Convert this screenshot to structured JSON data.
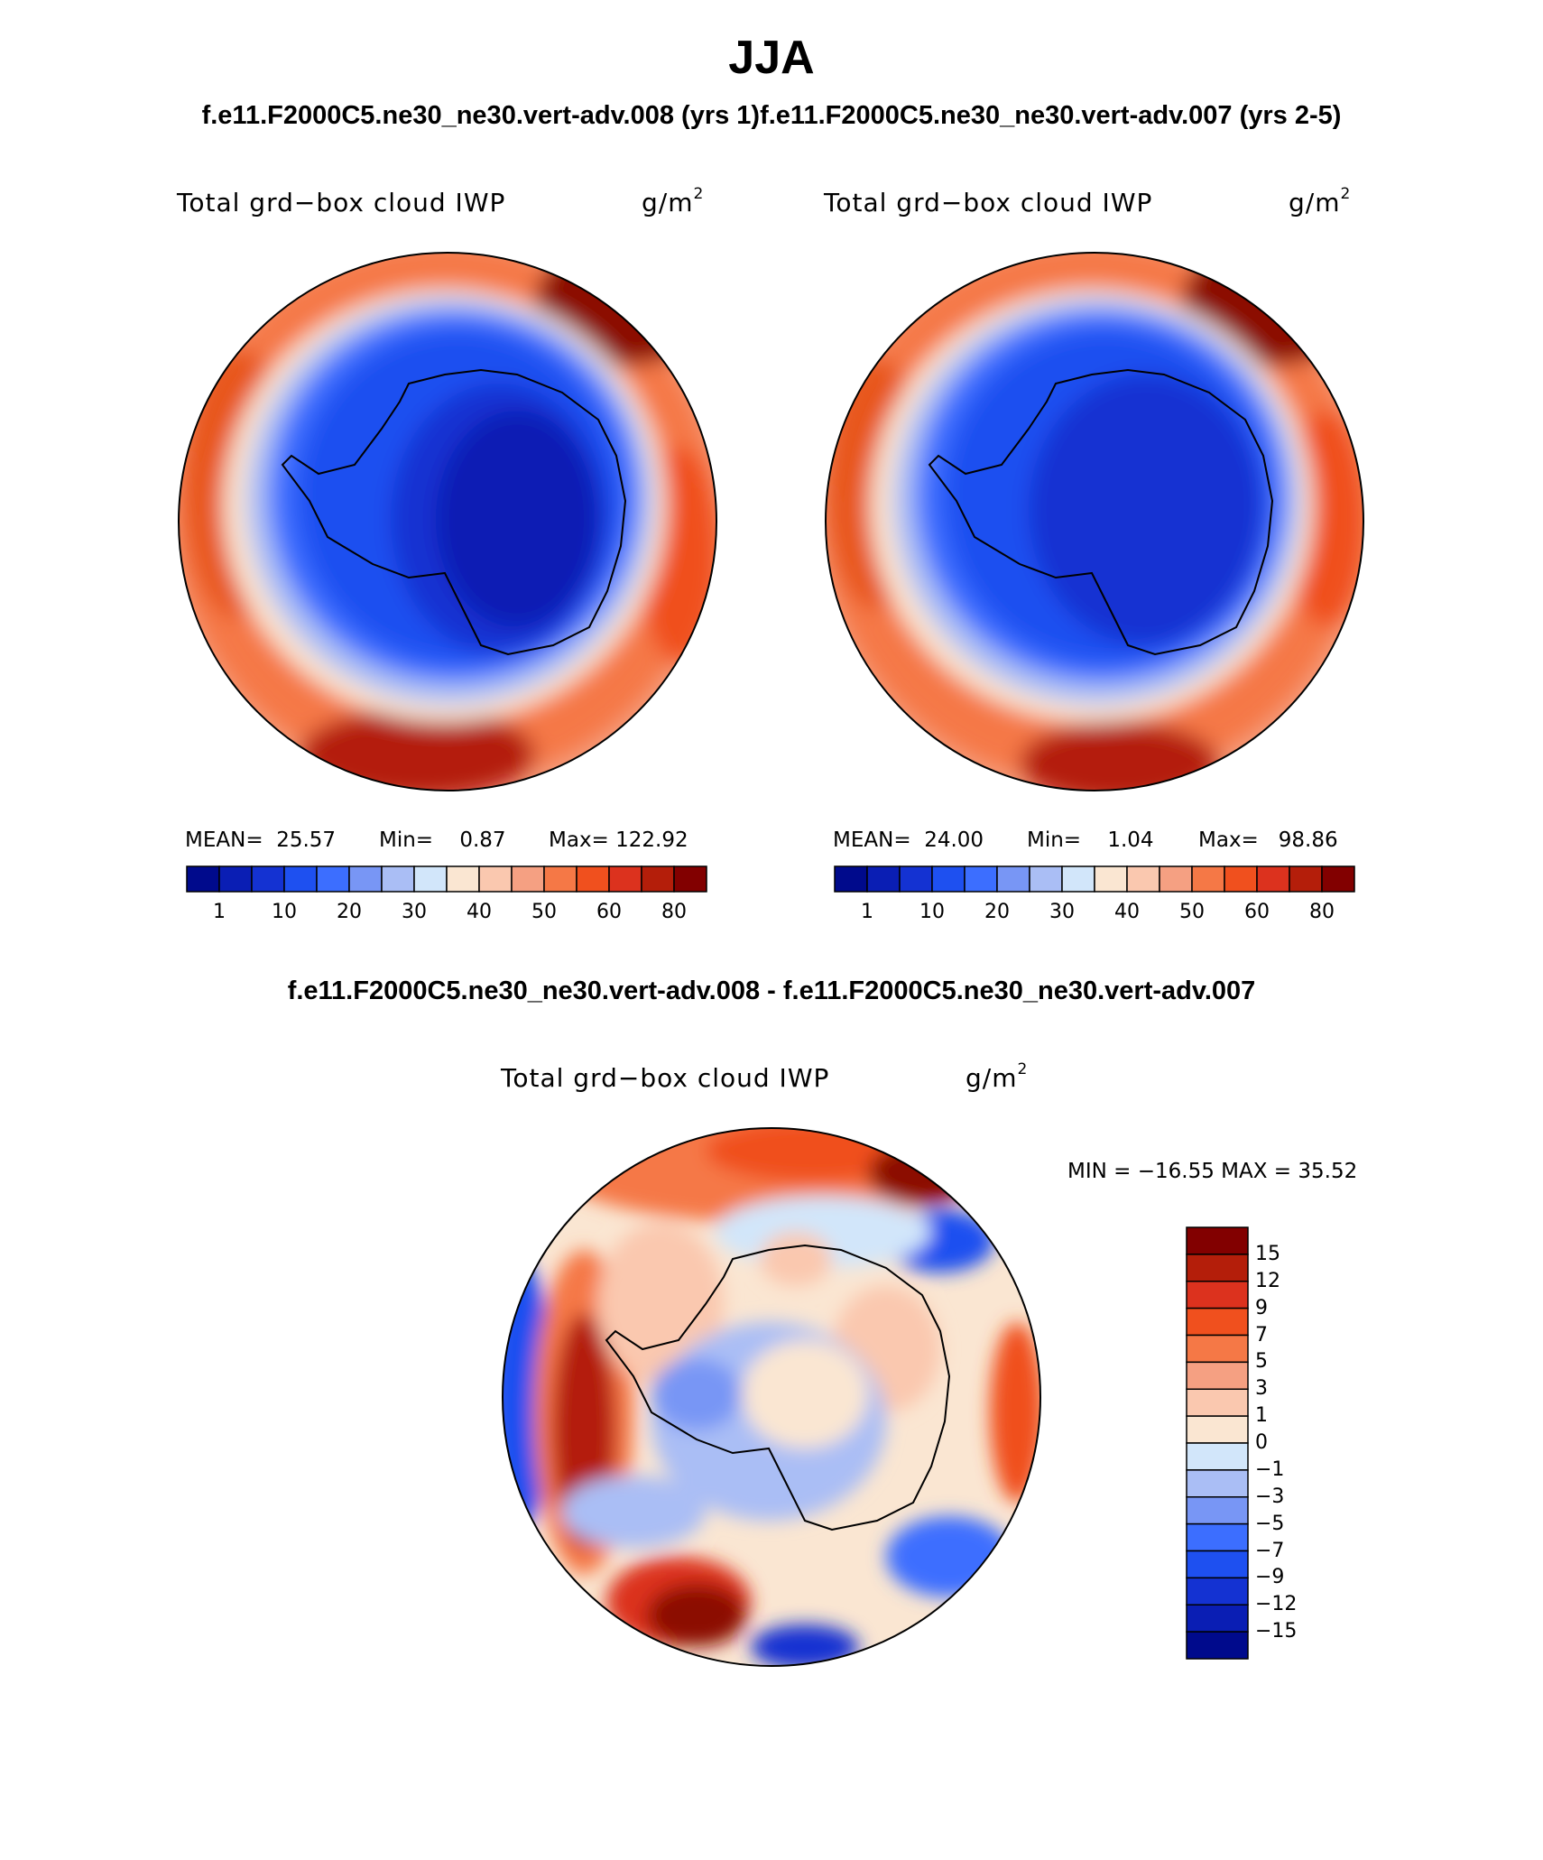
{
  "header": {
    "season": "JJA",
    "case_titles": "f.e11.F2000C5.ne30_ne30.vert-adv.008 (yrs 1)f.e11.F2000C5.ne30_ne30.vert-adv.007 (yrs 2-5)"
  },
  "panels": [
    {
      "variable": "Total grd−box cloud IWP",
      "units": "g/m",
      "units_exp": "2",
      "mean_label": "MEAN=",
      "mean": "25.57",
      "min_label": "Min=",
      "min": "0.87",
      "max_label": "Max=",
      "max": "122.92"
    },
    {
      "variable": "Total grd−box cloud IWP",
      "units": "g/m",
      "units_exp": "2",
      "mean_label": "MEAN=",
      "mean": "24.00",
      "min_label": "Min=",
      "min": "1.04",
      "max_label": "Max=",
      "max": "98.86"
    }
  ],
  "difference": {
    "title": "f.e11.F2000C5.ne30_ne30.vert-adv.008 - f.e11.F2000C5.ne30_ne30.vert-adv.007",
    "variable": "Total grd−box cloud IWP",
    "units": "g/m",
    "units_exp": "2",
    "minmax": "MIN = −16.55 MAX =   35.52"
  },
  "colorbars": {
    "abs": {
      "colors": [
        "#000a8c",
        "#0a1eb4",
        "#1432d2",
        "#1e50f0",
        "#3c6eff",
        "#7896f5",
        "#aabef5",
        "#d2e6fa",
        "#fae6d2",
        "#fac8af",
        "#f5a082",
        "#f57846",
        "#f0501e",
        "#dc321e",
        "#b41e0a",
        "#820000"
      ],
      "tick_labels": [
        "1",
        "10",
        "20",
        "30",
        "40",
        "50",
        "60",
        "80"
      ]
    },
    "diff": {
      "colors": [
        "#000a8c",
        "#0a1eb4",
        "#1432d2",
        "#1e50f0",
        "#3c6eff",
        "#7896f5",
        "#aabef5",
        "#d2e6fa",
        "#fae6d2",
        "#fac8af",
        "#f5a082",
        "#f57846",
        "#f0501e",
        "#dc321e",
        "#b41e0a",
        "#820000"
      ],
      "tick_labels": [
        "15",
        "12",
        "9",
        "7",
        "5",
        "3",
        "1",
        "0",
        "−1",
        "−3",
        "−5",
        "−7",
        "−9",
        "−12",
        "−15"
      ]
    }
  }
}
